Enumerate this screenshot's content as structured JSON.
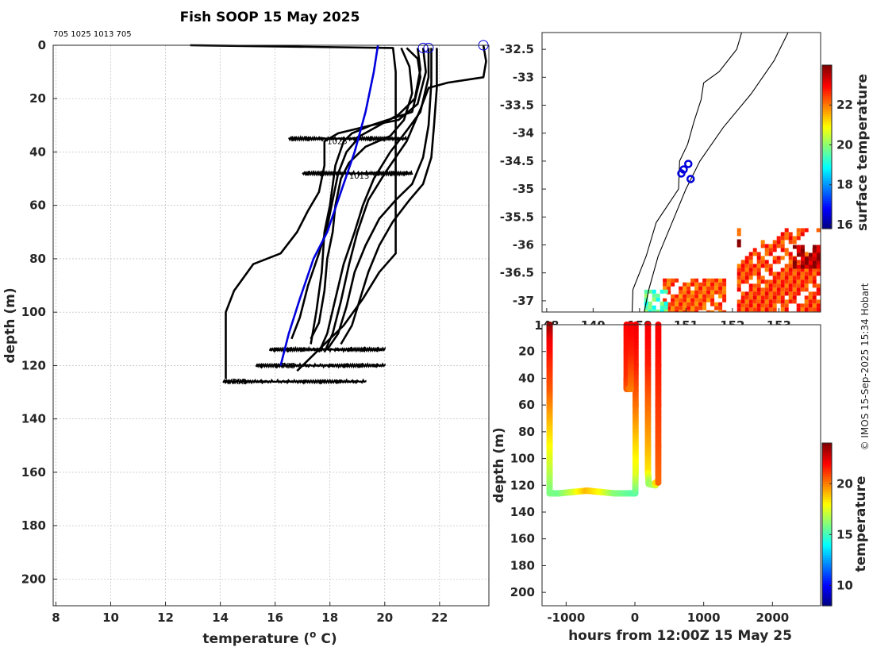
{
  "chart_data": [
    {
      "type": "line",
      "id": "profiles",
      "title": "Fish SOOP 15 May 2025",
      "deployment_ids": "705 1025 1013 705",
      "xlabel": "temperature (",
      "xlabel_sup": "o",
      "xlabel_tail": " C)",
      "ylabel": "depth (m)",
      "xlim": [
        7.9,
        23.8
      ],
      "ylim": [
        0,
        210
      ],
      "xticks": [
        8,
        10,
        12,
        14,
        16,
        18,
        20,
        22
      ],
      "yticks": [
        0,
        20,
        40,
        60,
        80,
        100,
        120,
        140,
        160,
        180,
        200
      ],
      "surface_markers": [
        [
          21.4,
          1
        ],
        [
          21.6,
          1
        ],
        [
          23.6,
          0
        ]
      ],
      "profile_labels": [
        {
          "text": "1025",
          "x": 17.9,
          "y": 37
        },
        {
          "text": "1013",
          "x": 18.7,
          "y": 50
        },
        {
          "text": "705",
          "x": 16.2,
          "y": 121
        },
        {
          "text": "705",
          "x": 14.4,
          "y": 127
        }
      ],
      "series": [
        {
          "name": "climatology",
          "color": "#0000dd",
          "points": [
            [
              19.75,
              0
            ],
            [
              19.6,
              10
            ],
            [
              19.3,
              25
            ],
            [
              18.9,
              40
            ],
            [
              18.4,
              55
            ],
            [
              17.9,
              70
            ],
            [
              17.4,
              80
            ],
            [
              16.9,
              95
            ],
            [
              16.5,
              108
            ],
            [
              16.2,
              120
            ]
          ]
        },
        {
          "name": "profile-1",
          "color": "#000000",
          "points": [
            [
              12.9,
              0
            ],
            [
              20.3,
              1
            ],
            [
              20.4,
              10
            ],
            [
              20.4,
              40
            ],
            [
              20.4,
              70
            ],
            [
              20.4,
              78
            ],
            [
              19.8,
              85
            ],
            [
              19.2,
              95
            ],
            [
              18.5,
              105
            ],
            [
              17.5,
              115
            ],
            [
              16.8,
              122
            ]
          ]
        },
        {
          "name": "profile-2",
          "color": "#000000",
          "points": [
            [
              20.8,
              1
            ],
            [
              21.2,
              5
            ],
            [
              21.3,
              12
            ],
            [
              21.0,
              25
            ],
            [
              19.5,
              30
            ],
            [
              18.3,
              33
            ],
            [
              17.8,
              36
            ],
            [
              17.8,
              45
            ],
            [
              17.6,
              55
            ],
            [
              17.2,
              62
            ],
            [
              16.8,
              70
            ],
            [
              16.2,
              78
            ],
            [
              15.2,
              82
            ],
            [
              14.5,
              92
            ],
            [
              14.2,
              100
            ],
            [
              14.2,
              125
            ]
          ]
        },
        {
          "name": "profile-3",
          "color": "#000000",
          "points": [
            [
              21.4,
              1
            ],
            [
              21.5,
              10
            ],
            [
              21.2,
              22
            ],
            [
              20.5,
              28
            ],
            [
              19.5,
              30
            ],
            [
              18.8,
              33
            ],
            [
              18.5,
              36
            ],
            [
              18.2,
              45
            ],
            [
              18.0,
              60
            ],
            [
              17.8,
              70
            ],
            [
              17.7,
              85
            ],
            [
              17.5,
              100
            ],
            [
              17.3,
              112
            ]
          ]
        },
        {
          "name": "profile-4",
          "color": "#000000",
          "points": [
            [
              21.6,
              1
            ],
            [
              21.6,
              12
            ],
            [
              21.3,
              25
            ],
            [
              20.8,
              32
            ],
            [
              20.2,
              40
            ],
            [
              19.6,
              50
            ],
            [
              19.2,
              60
            ],
            [
              18.9,
              70
            ],
            [
              18.5,
              82
            ],
            [
              18.2,
              95
            ],
            [
              17.9,
              108
            ],
            [
              17.6,
              115
            ]
          ]
        },
        {
          "name": "profile-5",
          "color": "#000000",
          "points": [
            [
              21.7,
              1
            ],
            [
              21.7,
              14
            ],
            [
              21.6,
              30
            ],
            [
              21.4,
              42
            ],
            [
              21.0,
              52
            ],
            [
              20.4,
              58
            ],
            [
              19.8,
              65
            ],
            [
              19.3,
              75
            ],
            [
              18.9,
              85
            ],
            [
              18.6,
              98
            ],
            [
              18.3,
              108
            ],
            [
              17.9,
              114
            ]
          ]
        },
        {
          "name": "profile-6",
          "color": "#000000",
          "points": [
            [
              21.9,
              1
            ],
            [
              21.9,
              16
            ],
            [
              21.8,
              30
            ],
            [
              21.7,
              42
            ],
            [
              21.4,
              52
            ],
            [
              20.9,
              58
            ],
            [
              20.3,
              66
            ],
            [
              19.8,
              75
            ],
            [
              19.4,
              85
            ],
            [
              19.1,
              95
            ],
            [
              18.8,
              105
            ],
            [
              18.4,
              112
            ]
          ]
        },
        {
          "name": "profile-7",
          "color": "#000000",
          "points": [
            [
              23.6,
              0
            ],
            [
              23.7,
              6
            ],
            [
              23.6,
              12
            ],
            [
              22.3,
              14
            ],
            [
              21.6,
              16
            ],
            [
              21.3,
              24
            ],
            [
              20.8,
              36
            ],
            [
              20.0,
              48
            ],
            [
              19.4,
              58
            ],
            [
              19.0,
              70
            ],
            [
              18.7,
              82
            ],
            [
              18.4,
              96
            ],
            [
              18.1,
              108
            ],
            [
              17.8,
              115
            ]
          ]
        },
        {
          "name": "profile-8",
          "color": "#000000",
          "points": [
            [
              20.6,
              1
            ],
            [
              20.9,
              8
            ],
            [
              21.0,
              18
            ],
            [
              20.7,
              28
            ],
            [
              20.2,
              34
            ],
            [
              19.3,
              38
            ],
            [
              18.7,
              44
            ],
            [
              18.4,
              50
            ],
            [
              18.2,
              60
            ],
            [
              18.1,
              70
            ],
            [
              17.9,
              80
            ],
            [
              17.8,
              92
            ],
            [
              17.6,
              104
            ],
            [
              17.3,
              110
            ]
          ]
        },
        {
          "name": "profile-9",
          "color": "#000000",
          "points": [
            [
              21.2,
              1
            ],
            [
              21.3,
              9
            ],
            [
              21.1,
              20
            ],
            [
              20.5,
              26
            ],
            [
              19.8,
              30
            ],
            [
              19.1,
              34
            ],
            [
              18.6,
              40
            ],
            [
              18.3,
              48
            ],
            [
              18.1,
              58
            ],
            [
              17.9,
              68
            ],
            [
              17.6,
              78
            ],
            [
              17.2,
              90
            ],
            [
              16.9,
              102
            ],
            [
              16.6,
              110
            ]
          ]
        }
      ],
      "noise_bands": [
        {
          "depth": 35,
          "x_from": 16.5,
          "x_to": 20.8
        },
        {
          "depth": 48,
          "x_from": 17.0,
          "x_to": 21.0
        },
        {
          "depth": 114,
          "x_from": 15.8,
          "x_to": 20.0
        },
        {
          "depth": 120,
          "x_from": 15.3,
          "x_to": 20.0
        },
        {
          "depth": 126,
          "x_from": 14.1,
          "x_to": 19.3
        }
      ]
    },
    {
      "type": "map",
      "id": "location-map",
      "colorbar_label": "surface temperature",
      "colorbar_ticks": [
        16,
        18,
        20,
        22
      ],
      "colorbar_range": [
        15.8,
        24
      ],
      "xlim": [
        147.9,
        153.9
      ],
      "ylim": [
        -37.2,
        -32.2
      ],
      "yticks": [
        -32.5,
        -33,
        -33.5,
        -34,
        -34.5,
        -35,
        -35.5,
        -36,
        -36.5,
        -37
      ],
      "ytick_labels": [
        "-32.5",
        "-33",
        "-33.5",
        "-34",
        "-34.5",
        "-35",
        "-35.5",
        "-36",
        "-36.5",
        "-37"
      ],
      "xticks": [
        148,
        149,
        150,
        151,
        152,
        153
      ],
      "xtick_labels": [
        "148",
        "149",
        "150",
        "151",
        "152",
        "153"
      ],
      "profile_locations": [
        [
          151.05,
          -34.55
        ],
        [
          150.95,
          -34.65
        ],
        [
          150.9,
          -34.72
        ],
        [
          151.1,
          -34.82
        ]
      ],
      "coastline": [
        [
          152.2,
          -32.2
        ],
        [
          152.1,
          -32.5
        ],
        [
          151.7,
          -32.9
        ],
        [
          151.4,
          -33.1
        ],
        [
          151.3,
          -33.4
        ],
        [
          151.2,
          -33.8
        ],
        [
          151.0,
          -34.2
        ],
        [
          150.9,
          -34.5
        ],
        [
          150.8,
          -35.0
        ],
        [
          150.4,
          -35.6
        ],
        [
          150.1,
          -36.2
        ],
        [
          149.9,
          -36.8
        ],
        [
          149.8,
          -37.2
        ]
      ],
      "isobath": [
        [
          153.2,
          -32.2
        ],
        [
          152.9,
          -32.7
        ],
        [
          152.4,
          -33.3
        ],
        [
          151.8,
          -33.9
        ],
        [
          151.3,
          -34.5
        ],
        [
          151.0,
          -35.0
        ],
        [
          150.7,
          -35.6
        ],
        [
          150.4,
          -36.2
        ],
        [
          150.2,
          -36.8
        ],
        [
          150.1,
          -37.2
        ]
      ],
      "sst_patches": [
        {
          "lon": [
            152.1,
            153.9
          ],
          "lat": [
            -37.2,
            -35.7
          ],
          "value": 22.5
        },
        {
          "lon": [
            153.3,
            153.9
          ],
          "lat": [
            -36.4,
            -36.0
          ],
          "value": 23.6
        },
        {
          "lon": [
            150.5,
            151.8
          ],
          "lat": [
            -37.2,
            -36.6
          ],
          "value": 22.3
        },
        {
          "lon": [
            150.1,
            150.6
          ],
          "lat": [
            -37.2,
            -36.8
          ],
          "value": 19.5
        },
        {
          "lon": [
            152.1,
            152.3
          ],
          "lat": [
            -36.0,
            -35.9
          ],
          "value": 24.0
        }
      ]
    },
    {
      "type": "scatter",
      "id": "time-depth",
      "xlabel": "hours from 12:00Z 15 May 25",
      "ylabel": "depth (m)",
      "xlim": [
        -1350,
        2700
      ],
      "ylim": [
        0,
        210
      ],
      "xticks": [
        -1000,
        0,
        1000,
        2000
      ],
      "xtick_labels": [
        "-1000",
        "0",
        "1000",
        "2000"
      ],
      "yticks": [
        20,
        40,
        60,
        80,
        100,
        120,
        140,
        160,
        180,
        200
      ],
      "colorbar_label": "temperature",
      "colorbar_ticks": [
        10,
        15,
        20
      ],
      "colorbar_range": [
        8,
        24
      ],
      "series": [
        {
          "name": "cast-1",
          "points": [
            [
              -1240,
              0,
              23.8
            ],
            [
              -1240,
              12,
              22.3
            ],
            [
              -1240,
              30,
              21.4
            ],
            [
              -1240,
              50,
              20.6
            ],
            [
              -1240,
              70,
              19.3
            ],
            [
              -1240,
              90,
              18.1
            ],
            [
              -1240,
              110,
              17.0
            ],
            [
              -1240,
              126,
              16.0
            ],
            [
              -1100,
              126,
              15.8
            ],
            [
              -900,
              125,
              17.2
            ],
            [
              -700,
              124,
              19.1
            ],
            [
              -500,
              125,
              18.0
            ],
            [
              -300,
              126,
              16.2
            ],
            [
              -100,
              126,
              15.6
            ],
            [
              5,
              126,
              15.4
            ],
            [
              10,
              110,
              17.5
            ],
            [
              10,
              90,
              18.5
            ],
            [
              10,
              60,
              20.2
            ],
            [
              10,
              30,
              21.5
            ],
            [
              10,
              0,
              22.2
            ]
          ]
        },
        {
          "name": "cast-2",
          "points": [
            [
              -120,
              0,
              22.0
            ],
            [
              -120,
              20,
              21.7
            ],
            [
              -120,
              40,
              21.3
            ],
            [
              -120,
              48,
              20.8
            ],
            [
              -60,
              48,
              20.0
            ],
            [
              -60,
              20,
              21.5
            ],
            [
              -60,
              0,
              22.1
            ]
          ]
        },
        {
          "name": "cast-3",
          "points": [
            [
              190,
              0,
              22.2
            ],
            [
              190,
              30,
              21.6
            ],
            [
              190,
              60,
              20.4
            ],
            [
              190,
              90,
              19.3
            ],
            [
              190,
              110,
              18.4
            ],
            [
              200,
              119,
              16.4
            ],
            [
              300,
              120,
              16.8
            ],
            [
              300,
              118,
              18.5
            ]
          ]
        },
        {
          "name": "cast-4",
          "points": [
            [
              340,
              0,
              22.2
            ],
            [
              340,
              30,
              21.7
            ],
            [
              340,
              60,
              21.2
            ],
            [
              340,
              90,
              20.8
            ],
            [
              340,
              118,
              20.4
            ]
          ]
        }
      ]
    }
  ],
  "watermark": "© IMOS 15-Sep-2025 15:34 Hobart"
}
